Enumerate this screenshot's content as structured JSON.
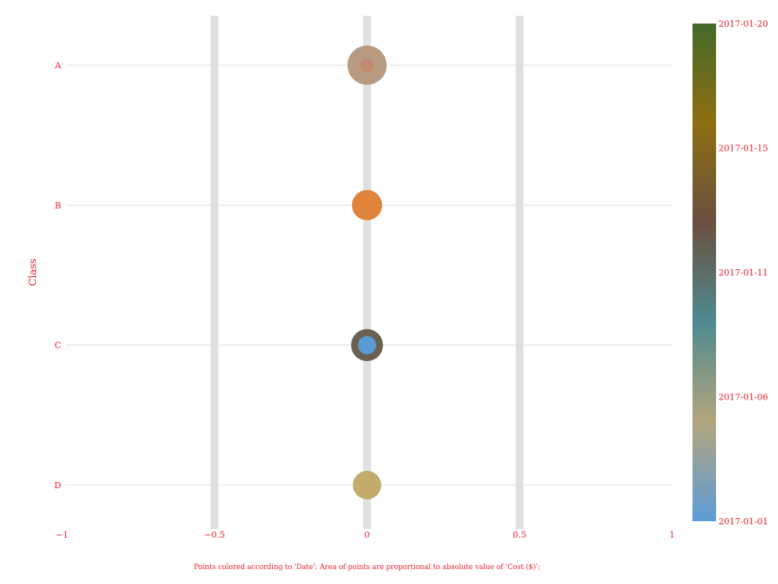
{
  "chart_data": {
    "type": "scatter",
    "ylabel": "Class",
    "xlabel": "",
    "caption": "Points colored according to 'Date'; Area of points are proportional to absolute value of 'Cost ($)';",
    "xlim": [
      -1,
      1
    ],
    "x_ticks": [
      -1,
      -0.5,
      0,
      0.5,
      1
    ],
    "x_tick_labels": [
      "−1",
      "−0.5",
      "0",
      "0.5",
      "1"
    ],
    "x_highlight_bands": [
      -0.5,
      0,
      0.5
    ],
    "categories": [
      "A",
      "B",
      "C",
      "D"
    ],
    "points": [
      {
        "category": "A",
        "x": 0,
        "date": "2017-01-06",
        "cost": 42,
        "color": "#b89a80"
      },
      {
        "category": "A",
        "x": 0,
        "date": "2017-01-13",
        "cost": 5,
        "color": "#be8a70"
      },
      {
        "category": "B",
        "x": 0,
        "date": "2017-01-14",
        "cost": 25,
        "color": "#e0843c"
      },
      {
        "category": "C",
        "x": 0,
        "date": "2017-01-12",
        "cost": 28,
        "color": "#6b6152"
      },
      {
        "category": "C",
        "x": 0,
        "date": "2017-01-01",
        "cost": 9,
        "color": "#5b9bd5"
      },
      {
        "category": "D",
        "x": 0,
        "date": "2017-01-07",
        "cost": 22,
        "color": "#c2ab6c"
      }
    ],
    "colorbar": {
      "labels": [
        "2017-01-20",
        "2017-01-15",
        "2017-01-11",
        "2017-01-06",
        "2017-01-01"
      ],
      "stops": [
        "#436a2a",
        "#8d6e12",
        "#6a5040",
        "#4e8a90",
        "#b3a57d",
        "#5e9cd8"
      ]
    },
    "grid": true
  }
}
